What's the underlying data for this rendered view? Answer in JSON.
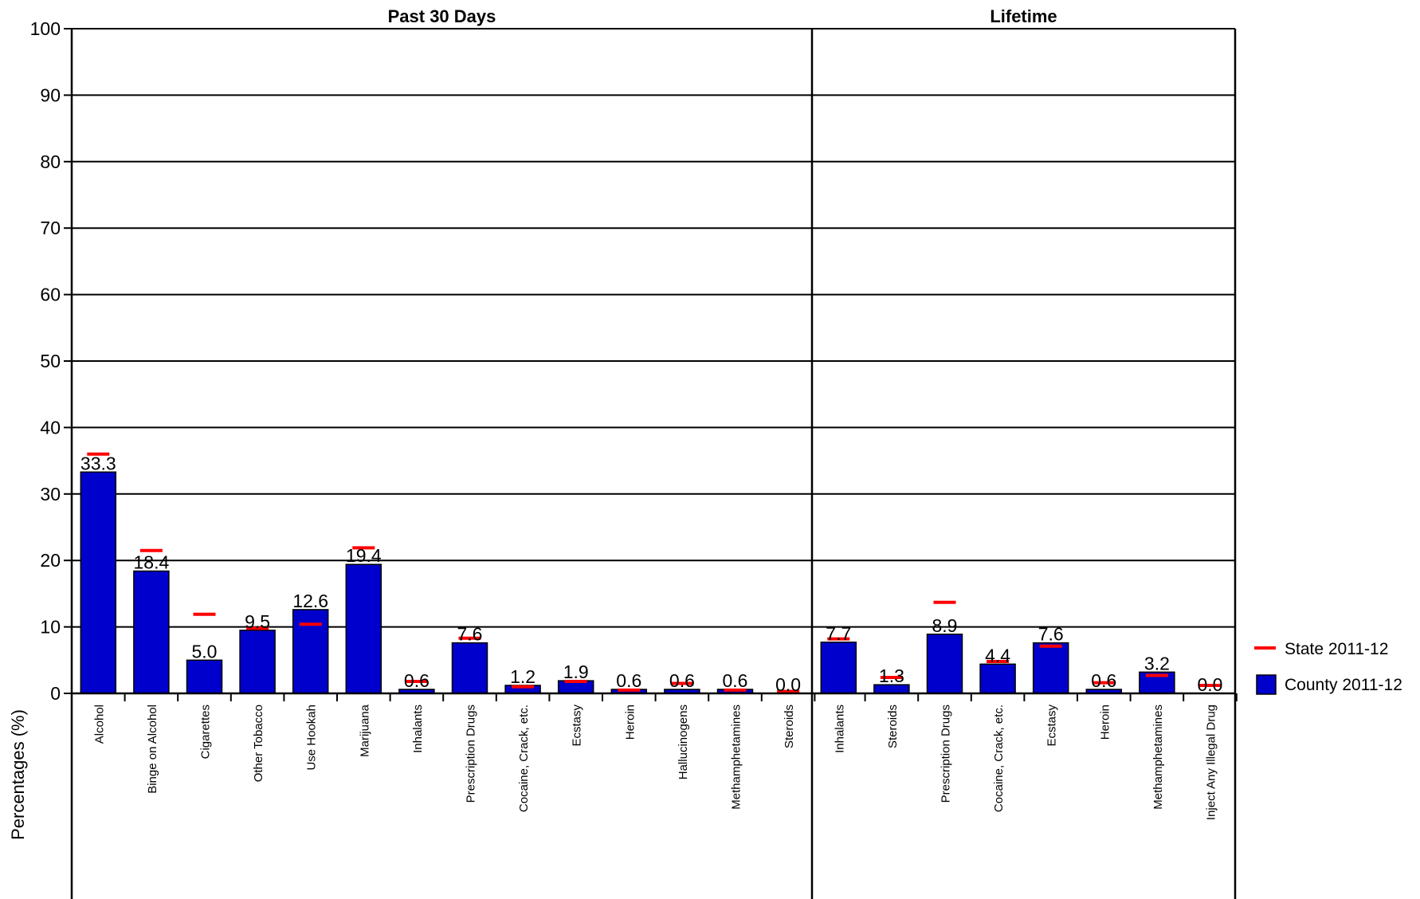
{
  "chart_data": {
    "type": "bar",
    "ylabel": "Percentages (%)",
    "ylim": [
      0,
      100
    ],
    "y_ticks": [
      "0",
      "10",
      "20",
      "30",
      "40",
      "50",
      "60",
      "70",
      "80",
      "90",
      "100"
    ],
    "grid": true,
    "legend_position": "right",
    "legend": [
      {
        "name": "State 2011-12",
        "marker": "line",
        "color": "#ff0000"
      },
      {
        "name": "County 2011-12",
        "marker": "bar",
        "color": "#0000cc"
      }
    ],
    "panels": [
      {
        "title": "Past 30 Days",
        "categories": [
          "Alcohol",
          "Binge on Alcohol",
          "Cigarettes",
          "Other Tobacco",
          "Use Hookah",
          "Marijuana",
          "Inhalants",
          "Prescription Drugs",
          "Cocaine, Crack, etc.",
          "Ecstasy",
          "Heroin",
          "Hallucinogens",
          "Methamphetamines",
          "Steroids"
        ],
        "series": [
          {
            "name": "County 2011-12",
            "values": [
              33.3,
              18.4,
              5.0,
              9.5,
              12.6,
              19.4,
              0.6,
              7.6,
              1.2,
              1.9,
              0.6,
              0.6,
              0.6,
              0.0
            ],
            "labels": [
              "33.3",
              "18.4",
              "5.0",
              "9.5",
              "12.6",
              "19.4",
              "0.6",
              "7.6",
              "1.2",
              "1.9",
              "0.6",
              "0.6",
              "0.6",
              "0.0"
            ]
          },
          {
            "name": "State 2011-12",
            "values": [
              36.0,
              21.5,
              11.9,
              9.8,
              10.4,
              21.9,
              1.8,
              8.3,
              1.0,
              1.8,
              0.5,
              1.5,
              0.5,
              0.3
            ]
          }
        ]
      },
      {
        "title": "Lifetime",
        "categories": [
          "Inhalants",
          "Steroids",
          "Prescription Drugs",
          "Cocaine, Crack, etc.",
          "Ecstasy",
          "Heroin",
          "Methamphetamines",
          "Inject Any Illegal Drug"
        ],
        "series": [
          {
            "name": "County 2011-12",
            "values": [
              7.7,
              1.3,
              8.9,
              4.4,
              7.6,
              0.6,
              3.2,
              0.0
            ],
            "labels": [
              "7.7",
              "1.3",
              "8.9",
              "4.4",
              "7.6",
              "0.6",
              "3.2",
              "0.0"
            ]
          },
          {
            "name": "State 2011-12",
            "values": [
              8.2,
              2.4,
              13.7,
              4.8,
              7.1,
              1.6,
              2.7,
              1.2
            ]
          }
        ]
      }
    ]
  }
}
